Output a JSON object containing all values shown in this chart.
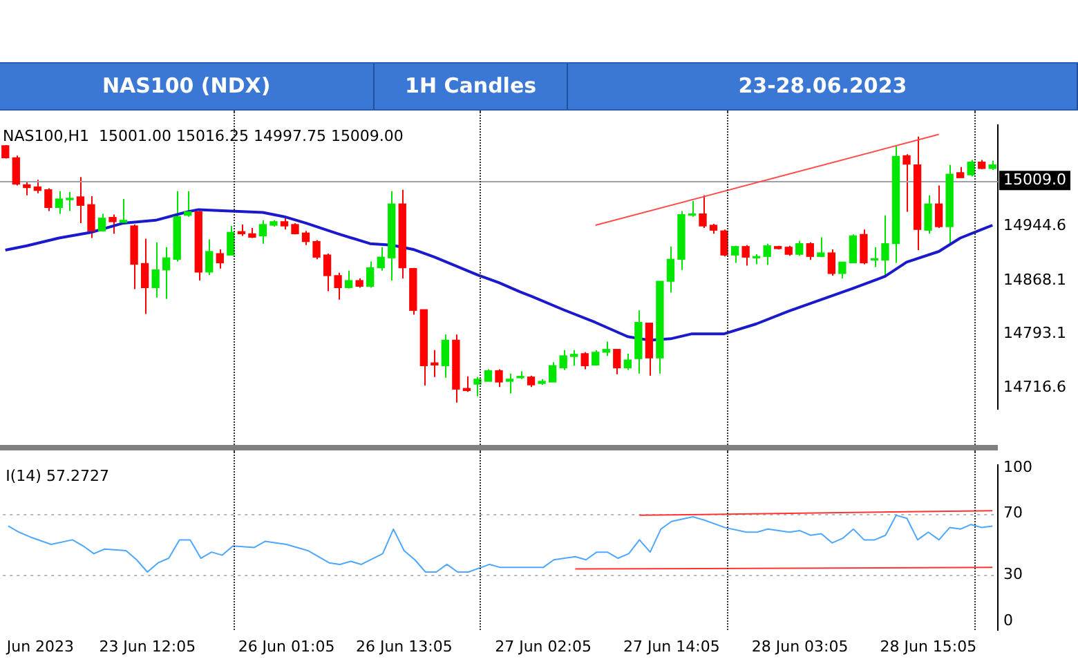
{
  "chart_data": [
    {
      "type": "candlestick",
      "title": "NAS100 (NDX)",
      "subtitle": "1H Candles",
      "annotations": [
        "23-28.06.2023",
        "NAS100,H1  15001.00 15016.25 14997.75 15009.00"
      ],
      "categories": [
        null,
        null,
        null,
        null,
        null,
        null,
        null,
        null,
        null,
        null,
        null,
        null,
        null,
        null,
        null,
        null,
        null,
        null,
        null,
        null,
        null,
        null,
        null,
        null,
        null,
        null,
        null,
        null,
        null,
        null,
        null,
        null,
        null,
        null,
        null,
        null,
        null,
        null,
        null,
        null,
        null,
        null,
        null,
        null,
        null,
        null,
        null,
        null,
        null,
        null,
        null,
        null,
        null,
        null,
        null,
        null,
        null,
        null,
        null,
        null,
        null,
        null,
        null,
        null,
        null,
        null,
        null,
        null,
        null,
        null,
        null,
        null,
        null,
        null,
        null,
        null,
        null,
        null,
        null,
        null,
        null,
        null,
        null,
        null,
        null,
        null,
        null,
        null,
        null,
        null,
        null,
        null,
        null
      ],
      "ohlc": [
        [
          15058,
          15059,
          15040,
          15041
        ],
        [
          15041,
          15044,
          15002,
          15004
        ],
        [
          15003,
          15007,
          14988,
          14999
        ],
        [
          15000,
          15010,
          14991,
          14995
        ],
        [
          14996,
          14998,
          14966,
          14971
        ],
        [
          14971,
          14994,
          14962,
          14983
        ],
        [
          14982,
          14993,
          14966,
          14984
        ],
        [
          14986,
          15014,
          14949,
          14974
        ],
        [
          14975,
          14987,
          14928,
          14938
        ],
        [
          14938,
          14962,
          14937,
          14956
        ],
        [
          14957,
          14961,
          14934,
          14951
        ],
        [
          14950,
          14983,
          14948,
          14953
        ],
        [
          14945,
          14947,
          14856,
          14891
        ],
        [
          14892,
          14927,
          14821,
          14858
        ],
        [
          14858,
          14922,
          14844,
          14883
        ],
        [
          14883,
          14915,
          14842,
          14900
        ],
        [
          14898,
          14994,
          14895,
          14958
        ],
        [
          14960,
          14994,
          14958,
          14965
        ],
        [
          14965,
          14966,
          14868,
          14880
        ],
        [
          14880,
          14926,
          14876,
          14909
        ],
        [
          14906,
          14912,
          14885,
          14893
        ],
        [
          14904,
          14945,
          14904,
          14936
        ],
        [
          14937,
          14947,
          14931,
          14934
        ],
        [
          14934,
          14942,
          14928,
          14929
        ],
        [
          14931,
          14953,
          14920,
          14947
        ],
        [
          14946,
          14953,
          14944,
          14951
        ],
        [
          14951,
          14958,
          14940,
          14945
        ],
        [
          14947,
          14949,
          14933,
          14934
        ],
        [
          14935,
          14938,
          14918,
          14923
        ],
        [
          14923,
          14925,
          14898,
          14901
        ],
        [
          14904,
          14906,
          14853,
          14875
        ],
        [
          14875,
          14879,
          14841,
          14858
        ],
        [
          14858,
          14882,
          14857,
          14868
        ],
        [
          14868,
          14871,
          14858,
          14860
        ],
        [
          14860,
          14895,
          14858,
          14886
        ],
        [
          14886,
          14915,
          14882,
          14901
        ],
        [
          14900,
          14994,
          14868,
          14976
        ],
        [
          14976,
          14996,
          14871,
          14886
        ],
        [
          14885,
          14886,
          14820,
          14826
        ],
        [
          14827,
          14827,
          14720,
          14748
        ],
        [
          14752,
          14770,
          14732,
          14749
        ],
        [
          14748,
          14792,
          14731,
          14784
        ],
        [
          14784,
          14792,
          14696,
          14715
        ],
        [
          14716,
          14733,
          14711,
          14713
        ],
        [
          14722,
          14732,
          14705,
          14729
        ],
        [
          14726,
          14743,
          14726,
          14741
        ],
        [
          14741,
          14743,
          14718,
          14725
        ],
        [
          14726,
          14737,
          14709,
          14729
        ],
        [
          14731,
          14740,
          14729,
          14733
        ],
        [
          14732,
          14734,
          14718,
          14721
        ],
        [
          14723,
          14729,
          14721,
          14726
        ],
        [
          14725,
          14753,
          14725,
          14748
        ],
        [
          14745,
          14770,
          14742,
          14762
        ],
        [
          14761,
          14770,
          14748,
          14764
        ],
        [
          14765,
          14767,
          14743,
          14748
        ],
        [
          14749,
          14770,
          14748,
          14767
        ],
        [
          14767,
          14782,
          14762,
          14771
        ],
        [
          14771,
          14771,
          14736,
          14745
        ],
        [
          14745,
          14765,
          14742,
          14756
        ],
        [
          14758,
          14826,
          14737,
          14809
        ],
        [
          14808,
          14808,
          14734,
          14759
        ],
        [
          14759,
          14867,
          14737,
          14867
        ],
        [
          14867,
          14916,
          14851,
          14898
        ],
        [
          14898,
          14966,
          14883,
          14961
        ],
        [
          14960,
          14980,
          14958,
          14962
        ],
        [
          14962,
          14988,
          14942,
          14945
        ],
        [
          14946,
          14948,
          14934,
          14939
        ],
        [
          14938,
          14940,
          14902,
          14904
        ],
        [
          14904,
          14917,
          14893,
          14916
        ],
        [
          14916,
          14918,
          14889,
          14901
        ],
        [
          14900,
          14905,
          14891,
          14901
        ],
        [
          14902,
          14920,
          14890,
          14917
        ],
        [
          14916,
          14917,
          14912,
          14913
        ],
        [
          14915,
          14917,
          14903,
          14905
        ],
        [
          14905,
          14924,
          14903,
          14920
        ],
        [
          14920,
          14922,
          14897,
          14902
        ],
        [
          14902,
          14929,
          14901,
          14907
        ],
        [
          14907,
          14912,
          14875,
          14878
        ],
        [
          14878,
          14894,
          14871,
          14894
        ],
        [
          14893,
          14933,
          14893,
          14931
        ],
        [
          14933,
          14940,
          14891,
          14893
        ],
        [
          14897,
          14915,
          14887,
          14898
        ],
        [
          14897,
          14960,
          14875,
          14920
        ],
        [
          14920,
          15058,
          14893,
          15043
        ],
        [
          15044,
          15046,
          14965,
          15032
        ],
        [
          15031,
          15071,
          14911,
          14940
        ],
        [
          14939,
          14988,
          14934,
          14976
        ],
        [
          14976,
          15002,
          14942,
          14944
        ],
        [
          14944,
          15031,
          14918,
          15018
        ],
        [
          15020,
          15028,
          15013,
          15013
        ],
        [
          15017,
          15038,
          15015,
          15035
        ],
        [
          15035,
          15038,
          15025,
          15026
        ],
        [
          15026,
          15037,
          15024,
          15031
        ]
      ],
      "colors": [
        "#ff0000",
        "#ff0000",
        "#ff0000",
        "#ff0000",
        "#ff0000",
        "#00e600",
        "#00e600",
        "#ff0000",
        "#ff0000",
        "#00e600",
        "#ff0000",
        "#00e600",
        "#ff0000",
        "#ff0000",
        "#00e600",
        "#00e600",
        "#00e600",
        "#00e600",
        "#ff0000",
        "#00e600",
        "#ff0000",
        "#00e600",
        "#ff0000",
        "#ff0000",
        "#00e600",
        "#00e600",
        "#ff0000",
        "#ff0000",
        "#ff0000",
        "#ff0000",
        "#ff0000",
        "#ff0000",
        "#00e600",
        "#ff0000",
        "#00e600",
        "#00e600",
        "#00e600",
        "#ff0000",
        "#ff0000",
        "#ff0000",
        "#ff0000",
        "#00e600",
        "#ff0000",
        "#ff0000",
        "#00e600",
        "#00e600",
        "#ff0000",
        "#00e600",
        "#00e600",
        "#ff0000",
        "#00e600",
        "#00e600",
        "#00e600",
        "#00e600",
        "#ff0000",
        "#00e600",
        "#00e600",
        "#ff0000",
        "#00e600",
        "#00e600",
        "#ff0000",
        "#00e600",
        "#00e600",
        "#00e600",
        "#00e600",
        "#ff0000",
        "#ff0000",
        "#ff0000",
        "#00e600",
        "#ff0000",
        "#00e600",
        "#00e600",
        "#ff0000",
        "#ff0000",
        "#00e600",
        "#ff0000",
        "#00e600",
        "#ff0000",
        "#00e600",
        "#00e600",
        "#ff0000",
        "#00e600",
        "#00e600",
        "#00e600",
        "#ff0000",
        "#ff0000",
        "#00e600",
        "#ff0000",
        "#00e600",
        "#ff0000",
        "#00e600",
        "#ff0000",
        "#00e600"
      ],
      "series": [
        {
          "type": "line",
          "color": "#1a1acc",
          "values": [
            14911,
            null,
            14917,
            null,
            null,
            14928,
            null,
            null,
            14936,
            null,
            null,
            14949,
            null,
            null,
            14953,
            null,
            null,
            14965,
            14968,
            null,
            null,
            14966,
            null,
            null,
            14964,
            null,
            14958,
            null,
            14949,
            null,
            null,
            14934,
            null,
            null,
            14920,
            null,
            14918,
            null,
            14912,
            null,
            14901,
            null,
            null,
            null,
            14876,
            null,
            14865,
            null,
            14852,
            14846,
            null,
            null,
            14827,
            null,
            null,
            14809,
            null,
            null,
            14789,
            null,
            14784,
            null,
            14786,
            null,
            14793,
            null,
            null,
            14793,
            null,
            null,
            14807,
            null,
            null,
            14825,
            null,
            null,
            14841,
            null,
            null,
            14857,
            null,
            null,
            14874,
            null,
            14894,
            null,
            null,
            14909,
            null,
            14928,
            null,
            14940,
            14946
          ]
        },
        {
          "type": "line",
          "color": "#ff4d4d",
          "values": [
            null,
            null,
            null,
            null,
            null,
            null,
            null,
            null,
            null,
            null,
            null,
            null,
            null,
            null,
            null,
            null,
            null,
            null,
            null,
            null,
            null,
            null,
            null,
            null,
            null,
            null,
            null,
            null,
            null,
            null,
            null,
            null,
            null,
            null,
            null,
            null,
            null,
            null,
            null,
            null,
            null,
            null,
            null,
            null,
            null,
            null,
            null,
            null,
            null,
            null,
            null,
            null,
            null,
            null,
            null,
            14946,
            null,
            null,
            null,
            null,
            null,
            null,
            null,
            null,
            null,
            null,
            null,
            null,
            null,
            null,
            null,
            null,
            null,
            null,
            null,
            null,
            null,
            null,
            null,
            null,
            null,
            null,
            null,
            null,
            null,
            null,
            null,
            15074,
            null,
            null,
            null,
            null,
            null
          ]
        }
      ],
      "ylim": [
        14687,
        15087
      ],
      "yticks": [
        14716.6,
        14793.1,
        14868.1,
        14944.6
      ],
      "tick_labels": "y",
      "marker": "none",
      "ref_lines": [
        {
          "axis": "y",
          "value": 15009,
          "label": "15009.0",
          "color": "#a0a0a8"
        }
      ]
    },
    {
      "type": "line",
      "annotations": [
        "I(14) 57.2727"
      ],
      "categories": [
        null,
        null,
        null,
        "Jun 2023",
        null,
        null,
        null,
        null,
        null,
        null,
        null,
        null,
        null,
        "23 Jun 12:05",
        null,
        null,
        null,
        null,
        null,
        null,
        null,
        null,
        null,
        null,
        null,
        null,
        "26 Jun 01:05",
        null,
        null,
        null,
        null,
        null,
        null,
        null,
        null,
        null,
        null,
        "26 Jun 13:05",
        null,
        null,
        null,
        null,
        null,
        null,
        null,
        null,
        null,
        null,
        null,
        null,
        "27 Jun 02:05",
        null,
        null,
        null,
        null,
        null,
        null,
        null,
        null,
        null,
        null,
        null,
        "27 Jun 14:05",
        null,
        null,
        null,
        null,
        null,
        null,
        null,
        null,
        null,
        null,
        null,
        "28 Jun 03:05",
        null,
        null,
        null,
        null,
        null,
        null,
        null,
        null,
        null,
        null,
        null,
        "28 Jun 15:05",
        null,
        null,
        null,
        null,
        null,
        null
      ],
      "series": [
        {
          "color": "#4da6ff",
          "values": [
            62,
            58,
            55,
            null,
            50,
            null,
            53,
            49,
            44,
            47,
            null,
            46,
            40,
            32,
            38,
            41,
            53,
            53,
            41,
            45,
            43,
            49,
            null,
            48,
            52,
            null,
            50,
            null,
            46,
            null,
            38,
            37,
            39,
            37,
            null,
            44,
            60,
            46,
            40,
            32,
            32,
            37,
            32,
            32,
            null,
            37,
            35,
            null,
            35,
            null,
            35,
            40,
            null,
            42,
            40,
            45,
            45,
            41,
            44,
            53,
            45,
            60,
            65,
            null,
            68,
            66,
            null,
            61,
            null,
            58,
            58,
            60,
            null,
            58,
            59,
            56,
            57,
            51,
            54,
            60,
            53,
            53,
            56,
            69,
            67,
            53,
            58,
            53,
            61,
            60,
            63,
            61,
            62
          ]
        },
        {
          "color": "#ff3333",
          "values": [
            null,
            null,
            null,
            null,
            null,
            null,
            null,
            null,
            null,
            null,
            null,
            null,
            null,
            null,
            null,
            null,
            null,
            null,
            null,
            null,
            null,
            null,
            null,
            null,
            null,
            null,
            null,
            null,
            null,
            null,
            null,
            null,
            null,
            null,
            null,
            null,
            null,
            null,
            null,
            null,
            null,
            null,
            null,
            null,
            null,
            null,
            null,
            null,
            null,
            null,
            null,
            null,
            null,
            null,
            null,
            null,
            null,
            null,
            null,
            69,
            null,
            null,
            null,
            null,
            null,
            null,
            null,
            null,
            null,
            null,
            null,
            null,
            null,
            null,
            null,
            null,
            null,
            null,
            null,
            null,
            null,
            null,
            null,
            null,
            null,
            null,
            null,
            null,
            null,
            null,
            null,
            null,
            72
          ]
        },
        {
          "color": "#ff3333",
          "values": [
            null,
            null,
            null,
            null,
            null,
            null,
            null,
            null,
            null,
            null,
            null,
            null,
            null,
            null,
            null,
            null,
            null,
            null,
            null,
            null,
            null,
            null,
            null,
            null,
            null,
            null,
            null,
            null,
            null,
            null,
            null,
            null,
            null,
            null,
            null,
            null,
            null,
            null,
            null,
            null,
            null,
            null,
            null,
            null,
            null,
            null,
            null,
            null,
            null,
            null,
            null,
            null,
            null,
            34,
            null,
            null,
            null,
            null,
            null,
            null,
            null,
            null,
            null,
            null,
            null,
            null,
            null,
            null,
            null,
            null,
            null,
            null,
            null,
            null,
            null,
            null,
            null,
            null,
            null,
            null,
            null,
            null,
            null,
            null,
            null,
            null,
            null,
            null,
            null,
            null,
            null,
            null,
            35
          ]
        }
      ],
      "ylim": [
        -5.8,
        101.7
      ],
      "yticks": [
        0,
        30,
        70,
        100
      ],
      "marker": "none",
      "ref_lines": [
        {
          "axis": "y",
          "value": 30,
          "color": "#b8b8b8",
          "line_style": "dotted"
        },
        {
          "axis": "y",
          "value": 70,
          "color": "#b8b8b8",
          "line_style": "dotted"
        }
      ]
    }
  ]
}
